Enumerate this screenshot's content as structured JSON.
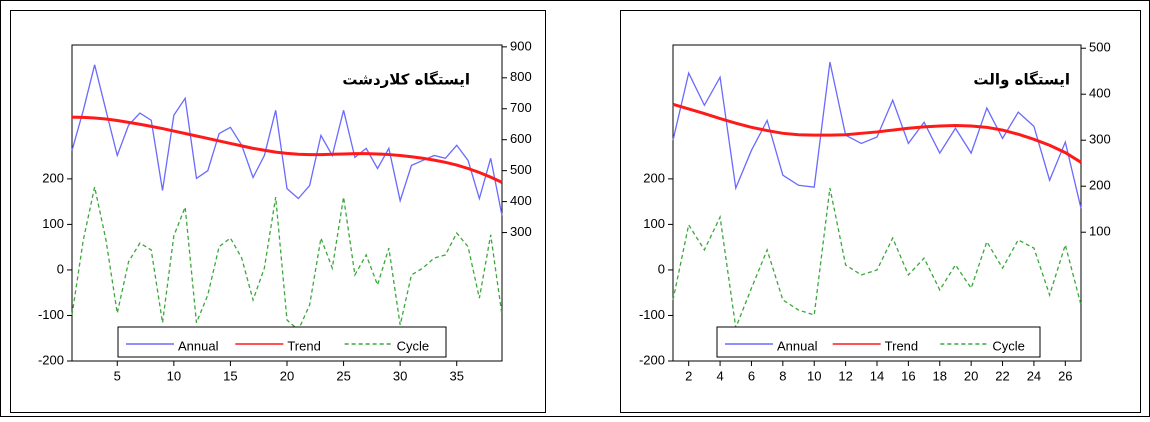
{
  "chart_data": [
    {
      "type": "line",
      "title": "ایستگاه کلاردشت",
      "x": [
        1,
        2,
        3,
        4,
        5,
        6,
        7,
        8,
        9,
        10,
        11,
        12,
        13,
        14,
        15,
        16,
        17,
        18,
        19,
        20,
        21,
        22,
        23,
        24,
        25,
        26,
        27,
        28,
        29,
        30,
        31,
        32,
        33,
        34,
        35,
        36,
        37,
        38,
        39
      ],
      "xlim": [
        1,
        39
      ],
      "xticks": [
        5,
        10,
        15,
        20,
        25,
        30,
        35
      ],
      "ylim": [
        -200,
        494
      ],
      "yticks": [
        -200,
        -100,
        0,
        100,
        200
      ],
      "y2lim": [
        -115,
        906
      ],
      "y2ticks": [
        300,
        400,
        500,
        600,
        700,
        800,
        900
      ],
      "legend": "bottom",
      "series": [
        {
          "name": "Annual",
          "color": "#6a6aff",
          "axis": "y2",
          "values": [
            565,
            695,
            842,
            695,
            549,
            647,
            686,
            663,
            436,
            679,
            734,
            475,
            500,
            620,
            640,
            582,
            478,
            549,
            695,
            442,
            410,
            452,
            614,
            549,
            695,
            543,
            572,
            507,
            572,
            403,
            517,
            533,
            549,
            540,
            582,
            533,
            410,
            540,
            355
          ]
        },
        {
          "name": "Trend",
          "color": "#ff1a1a",
          "axis": "y2",
          "values": [
            673,
            672,
            670,
            667,
            662,
            656,
            650,
            643,
            636,
            628,
            620,
            612,
            604,
            596,
            588,
            580,
            572,
            566,
            560,
            556,
            553,
            552,
            552,
            553,
            554,
            555,
            555,
            554,
            552,
            549,
            545,
            540,
            534,
            527,
            518,
            507,
            494,
            479,
            462
          ]
        },
        {
          "name": "Cycle",
          "color": "#3aa83a",
          "dashed": true,
          "values": [
            -99,
            66,
            182,
            66,
            -95,
            18,
            59,
            44,
            -116,
            75,
            138,
            -116,
            -55,
            51,
            70,
            26,
            -66,
            4,
            160,
            -110,
            -132,
            -77,
            70,
            4,
            160,
            -11,
            33,
            -33,
            48,
            -121,
            -11,
            4,
            26,
            33,
            81,
            51,
            -62,
            77,
            -99
          ]
        }
      ]
    },
    {
      "type": "line",
      "title": "ایستگاه والت",
      "x": [
        1,
        2,
        3,
        4,
        5,
        6,
        7,
        8,
        9,
        10,
        11,
        12,
        13,
        14,
        15,
        16,
        17,
        18,
        19,
        20,
        21,
        22,
        23,
        24,
        25,
        26,
        27
      ],
      "xlim": [
        1,
        27
      ],
      "xticks": [
        2,
        4,
        6,
        8,
        10,
        12,
        14,
        16,
        18,
        20,
        22,
        24,
        26
      ],
      "ylim": [
        -200,
        494
      ],
      "yticks": [
        -200,
        -100,
        0,
        100,
        200
      ],
      "y2lim": [
        -180,
        507
      ],
      "y2ticks": [
        100,
        200,
        300,
        400,
        500
      ],
      "legend": "bottom",
      "series": [
        {
          "name": "Annual",
          "color": "#6a6aff",
          "axis": "y2",
          "values": [
            300,
            446,
            376,
            437,
            196,
            278,
            343,
            224,
            202,
            198,
            470,
            311,
            293,
            307,
            387,
            293,
            339,
            272,
            326,
            272,
            370,
            304,
            361,
            330,
            213,
            296,
            152
          ]
        },
        {
          "name": "Trend",
          "color": "#ff1a1a",
          "axis": "y2",
          "values": [
            378,
            368,
            358,
            347,
            337,
            328,
            321,
            315,
            312,
            311,
            311,
            312,
            315,
            318,
            322,
            326,
            329,
            331,
            332,
            331,
            328,
            322,
            313,
            302,
            289,
            273,
            252
          ]
        },
        {
          "name": "Cycle",
          "color": "#3aa83a",
          "dashed": true,
          "values": [
            -66,
            99,
            44,
            116,
            -127,
            -40,
            44,
            -66,
            -88,
            -99,
            180,
            11,
            -11,
            0,
            70,
            -11,
            26,
            -44,
            11,
            -40,
            62,
            4,
            66,
            48,
            -55,
            55,
            -77
          ]
        }
      ]
    }
  ]
}
